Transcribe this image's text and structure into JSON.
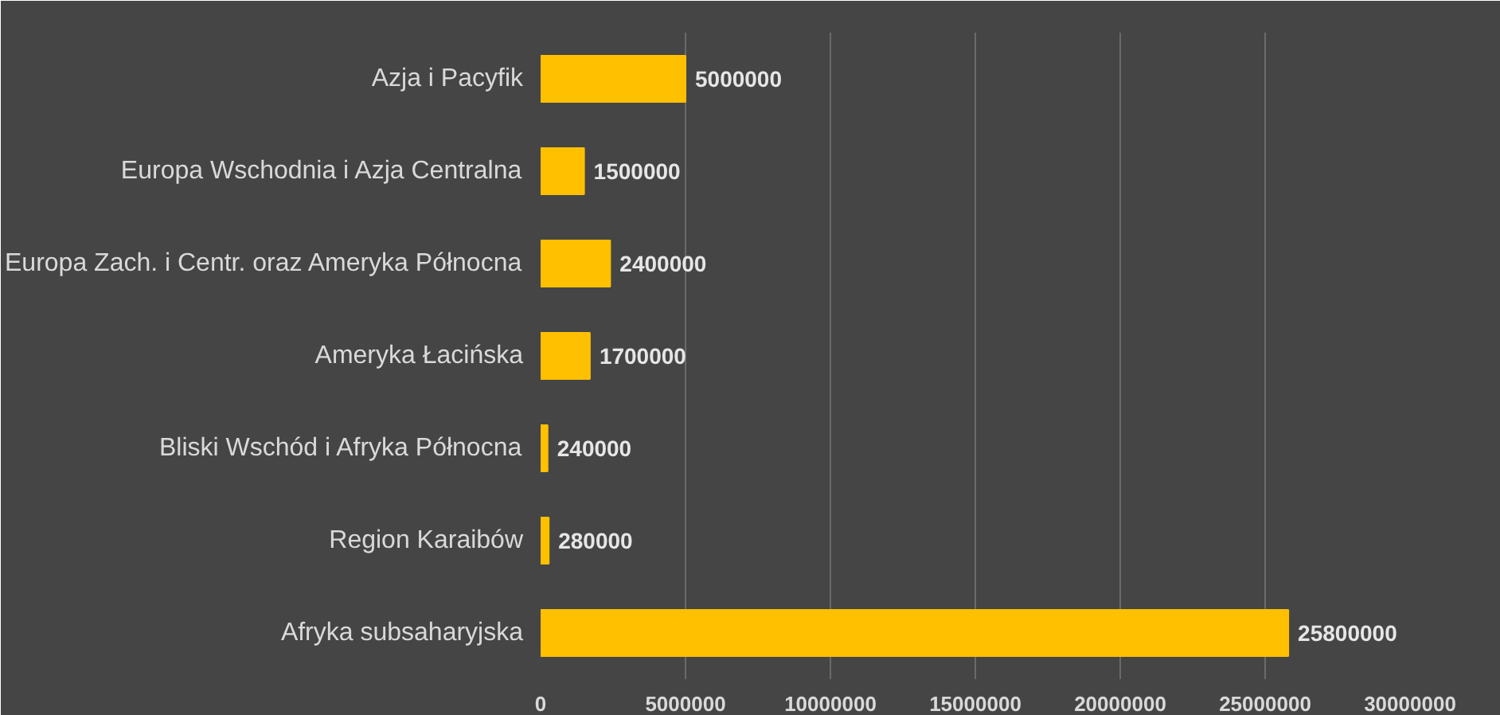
{
  "chart_data": {
    "type": "bar",
    "orientation": "horizontal",
    "categories": [
      "Azja i Pacyfik",
      "Europa Wschodnia i Azja Centralna",
      "Europa Zach. i Centr. oraz Ameryka Północna",
      "Ameryka Łacińska",
      "Bliski Wschód i Afryka Północna",
      "Region Karaibów",
      "Afryka subsaharyjska"
    ],
    "values": [
      5000000,
      1500000,
      2400000,
      1700000,
      240000,
      280000,
      25800000
    ],
    "color": "#ffc000",
    "data_labels": true,
    "grid": "x",
    "xlim": [
      0,
      30000000
    ],
    "xticks": [
      0,
      5000000,
      10000000,
      15000000,
      20000000,
      25000000,
      30000000
    ]
  }
}
